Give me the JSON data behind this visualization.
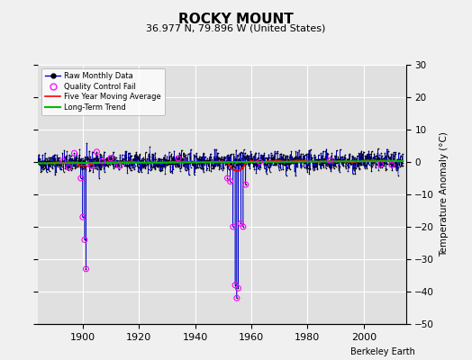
{
  "title": "ROCKY MOUNT",
  "subtitle": "36.977 N, 79.896 W (United States)",
  "ylabel": "Temperature Anomaly (°C)",
  "xlabel_credit": "Berkeley Earth",
  "xlim": [
    1884,
    2015
  ],
  "ylim": [
    -50,
    30
  ],
  "yticks": [
    -50,
    -40,
    -30,
    -20,
    -10,
    0,
    10,
    20,
    30
  ],
  "xticks": [
    1900,
    1920,
    1940,
    1960,
    1980,
    2000
  ],
  "bg_color": "#e0e0e0",
  "grid_color": "white",
  "raw_color": "#0000cc",
  "raw_marker_color": "#000000",
  "qc_color": "#ff00ff",
  "moving_avg_color": "#ff0000",
  "trend_color": "#00bb00",
  "seed": 42,
  "n_points": 1560,
  "start_year": 1884.0,
  "end_year": 2013.9,
  "anomaly_outliers_1900": [
    {
      "year": 1899.3,
      "value": -5.0
    },
    {
      "year": 1900.0,
      "value": -17.0
    },
    {
      "year": 1900.7,
      "value": -24.0
    },
    {
      "year": 1901.2,
      "value": -33.0
    }
  ],
  "anomaly_outliers_1955": [
    {
      "year": 1951.5,
      "value": -5.0
    },
    {
      "year": 1952.5,
      "value": -6.0
    },
    {
      "year": 1953.5,
      "value": -20.0
    },
    {
      "year": 1954.2,
      "value": -38.0
    },
    {
      "year": 1954.8,
      "value": -42.0
    },
    {
      "year": 1955.3,
      "value": -39.0
    },
    {
      "year": 1956.2,
      "value": -19.0
    },
    {
      "year": 1957.1,
      "value": -20.0
    },
    {
      "year": 1958.0,
      "value": -7.0
    }
  ],
  "extra_qc_years": [
    1893,
    1895,
    1897,
    1903,
    1905,
    1907,
    1910,
    1913,
    1934,
    1963,
    1988,
    2006,
    2010
  ]
}
